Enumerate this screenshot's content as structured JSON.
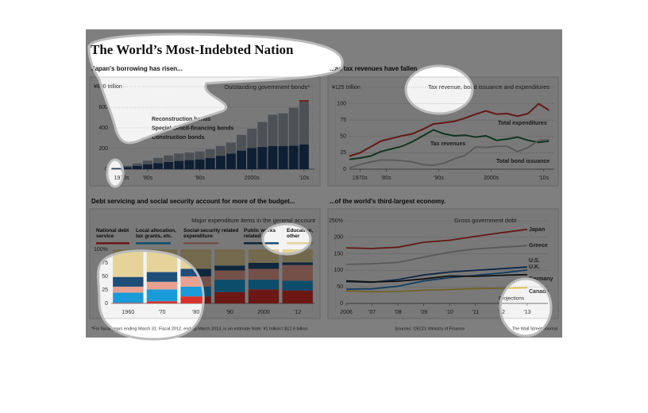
{
  "header": {
    "title": "The World’s Most-Indebted Nation",
    "footnote": "*For fiscal years ending March 31; Fiscal 2012, ending March 2013, is an estimate   Note: ¥1 trillion= $12.6 billion",
    "source": "Sources: OECD; Ministry of Finance",
    "credit": "The Wall Street Journal"
  },
  "chart_data": [
    {
      "type": "stacked_bar",
      "title": "Japan's borrowing has risen...",
      "subtitle": "Outstanding government bonds*",
      "x": [
        1975,
        1977,
        1979,
        1981,
        1983,
        1985,
        1987,
        1989,
        1991,
        1993,
        1995,
        1997,
        1999,
        2001,
        2003,
        2005,
        2007,
        2009,
        2011
      ],
      "xlim": [
        1974,
        2013
      ],
      "xticks": [
        {
          "value": 1976,
          "label": "1970s"
        },
        {
          "value": 1981,
          "label": "'80s"
        },
        {
          "value": 1991,
          "label": "'90s"
        },
        {
          "value": 2001,
          "label": "2000s"
        },
        {
          "value": 2011,
          "label": "'10s"
        }
      ],
      "ylim": [
        0,
        800
      ],
      "yticks": [
        0,
        200,
        400,
        600,
        {
          "value": 800,
          "label": "¥800 trillion"
        }
      ],
      "grid": true,
      "series": [
        {
          "name": "Construction bonds",
          "color": "#1f3f66",
          "values": [
            10,
            20,
            32,
            46,
            58,
            70,
            80,
            88,
            95,
            108,
            130,
            152,
            180,
            205,
            215,
            225,
            225,
            228,
            240
          ]
        },
        {
          "name": "Special deficit-financing bonds",
          "color": "#9aa3ad",
          "values": [
            5,
            12,
            24,
            36,
            52,
            64,
            72,
            73,
            77,
            85,
            95,
            106,
            152,
            187,
            242,
            302,
            316,
            366,
            416
          ]
        },
        {
          "name": "Reconstruction bonds",
          "color": "#c8312b",
          "values": [
            0,
            0,
            0,
            0,
            0,
            0,
            0,
            0,
            0,
            0,
            0,
            0,
            0,
            0,
            0,
            0,
            0,
            0,
            12
          ]
        }
      ]
    },
    {
      "type": "line",
      "title": "...as tax revenues have fallen.",
      "subtitle": "Tax revenue, bond issuance and expenditures",
      "x": [
        1974,
        1976,
        1978,
        1980,
        1982,
        1984,
        1986,
        1988,
        1990,
        1992,
        1994,
        1996,
        1998,
        2000,
        2002,
        2004,
        2006,
        2008,
        2010,
        2012
      ],
      "xlim": [
        1974,
        2013
      ],
      "xticks": [
        {
          "value": 1976,
          "label": "1970s"
        },
        {
          "value": 1981,
          "label": "'80s"
        },
        {
          "value": 1991,
          "label": "'90s"
        },
        {
          "value": 2001,
          "label": "2000s"
        },
        {
          "value": 2011,
          "label": "'10s"
        }
      ],
      "ylim": [
        0,
        125
      ],
      "yticks": [
        0,
        25,
        50,
        75,
        100,
        {
          "value": 125,
          "label": "¥125 trillion"
        }
      ],
      "grid": true,
      "series": [
        {
          "name": "Total expenditures",
          "color": "#c8312b",
          "values": [
            20,
            25,
            34,
            43,
            47,
            51,
            54,
            61,
            69,
            71,
            73,
            78,
            84,
            89,
            84,
            85,
            81,
            85,
            100,
            90
          ]
        },
        {
          "name": "Tax revenues",
          "color": "#1e6b45",
          "values": [
            15,
            17,
            20,
            27,
            31,
            35,
            42,
            51,
            60,
            54,
            51,
            52,
            49,
            51,
            44,
            46,
            49,
            44,
            41,
            43
          ]
        },
        {
          "name": "Total bond issuance",
          "color": "#b5b5b5",
          "values": [
            2,
            7,
            11,
            14,
            14,
            13,
            11,
            7,
            6,
            9,
            16,
            21,
            34,
            33,
            35,
            35,
            27,
            33,
            44,
            45
          ]
        }
      ]
    },
    {
      "type": "stacked_bar",
      "title": "Debt servicing and social security account for more of the budget...",
      "subtitle": "Major expenditure items in the general account",
      "categories": [
        "1960",
        "'70",
        "'80",
        "'90",
        "2000",
        "'12"
      ],
      "ylim": [
        0,
        100
      ],
      "yticks": [
        0,
        25,
        50,
        75,
        {
          "value": 100,
          "label": "100%"
        }
      ],
      "grid": false,
      "series": [
        {
          "name": "National debt service",
          "color": "#d9312b",
          "values": [
            1,
            4,
            13,
            21,
            26,
            24
          ]
        },
        {
          "name": "Local allocation, tax grants, etc.",
          "color": "#1a9ad9",
          "values": [
            19,
            22,
            18,
            23,
            18,
            18
          ]
        },
        {
          "name": "Social-security related expenditure",
          "color": "#e8a090",
          "values": [
            11,
            14,
            19,
            17,
            20,
            29
          ]
        },
        {
          "name": "Public works related",
          "color": "#1f4e79",
          "values": [
            18,
            18,
            14,
            9,
            11,
            5
          ]
        },
        {
          "name": "Education, other",
          "color": "#e6d39a",
          "values": [
            51,
            42,
            36,
            30,
            25,
            24
          ]
        }
      ]
    },
    {
      "type": "line",
      "title": "...of the world's third-largest economy.",
      "subtitle": "Gross government debt",
      "annotation": "Projections",
      "x": [
        2006,
        2007,
        2008,
        2009,
        2010,
        2011,
        2012,
        2013
      ],
      "xlim": [
        2006,
        2013.8
      ],
      "xticks": [
        2006,
        {
          "value": 2007,
          "label": "'07"
        },
        {
          "value": 2008,
          "label": "'08"
        },
        {
          "value": 2009,
          "label": "'09"
        },
        {
          "value": 2010,
          "label": "'10"
        },
        {
          "value": 2011,
          "label": "'11"
        },
        {
          "value": 2012,
          "label": "'12"
        },
        {
          "value": 2013,
          "label": "'13"
        }
      ],
      "ylim": [
        0,
        250
      ],
      "yticks": [
        0,
        50,
        100,
        150,
        200,
        {
          "value": 250,
          "label": "250%"
        }
      ],
      "grid": true,
      "series": [
        {
          "name": "Japan",
          "color": "#c8312b",
          "values": [
            168,
            166,
            170,
            185,
            191,
            203,
            214,
            224
          ]
        },
        {
          "name": "Greece",
          "color": "#b0b0b0",
          "values": [
            118,
            120,
            124,
            140,
            155,
            165,
            170,
            175
          ]
        },
        {
          "name": "U.S.",
          "color": "#1f4e8c",
          "values": [
            66,
            64,
            72,
            86,
            95,
            100,
            105,
            110
          ]
        },
        {
          "name": "U.K.",
          "color": "#2b7bc0",
          "values": [
            43,
            44,
            52,
            68,
            78,
            85,
            92,
            101
          ]
        },
        {
          "name": "Germany",
          "color": "#222222",
          "values": [
            68,
            65,
            67,
            74,
            83,
            82,
            85,
            87
          ]
        },
        {
          "name": "Canada",
          "color": "#e3c34a",
          "values": [
            38,
            35,
            36,
            40,
            42,
            45,
            46,
            47
          ]
        }
      ]
    }
  ]
}
